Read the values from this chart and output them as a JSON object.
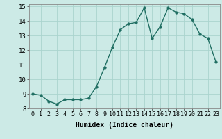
{
  "x": [
    0,
    1,
    2,
    3,
    4,
    5,
    6,
    7,
    8,
    9,
    10,
    11,
    12,
    13,
    14,
    15,
    16,
    17,
    18,
    19,
    20,
    21,
    22,
    23
  ],
  "y": [
    9.0,
    8.9,
    8.5,
    8.3,
    8.6,
    8.6,
    8.6,
    8.7,
    9.5,
    10.8,
    12.2,
    13.4,
    13.8,
    13.9,
    14.9,
    12.8,
    13.6,
    14.9,
    14.6,
    14.5,
    14.1,
    13.1,
    12.8,
    11.2
  ],
  "xlabel": "Humidex (Indice chaleur)",
  "ylim": [
    8,
    15
  ],
  "xlim_min": -0.5,
  "xlim_max": 23.5,
  "yticks": [
    8,
    9,
    10,
    11,
    12,
    13,
    14,
    15
  ],
  "xticks": [
    0,
    1,
    2,
    3,
    4,
    5,
    6,
    7,
    8,
    9,
    10,
    11,
    12,
    13,
    14,
    15,
    16,
    17,
    18,
    19,
    20,
    21,
    22,
    23
  ],
  "xtick_labels": [
    "0",
    "1",
    "2",
    "3",
    "4",
    "5",
    "6",
    "7",
    "8",
    "9",
    "10",
    "11",
    "12",
    "13",
    "14",
    "15",
    "16",
    "17",
    "18",
    "19",
    "20",
    "21",
    "22",
    "23"
  ],
  "line_color": "#1f6e62",
  "marker_color": "#1f6e62",
  "bg_color": "#cceae6",
  "grid_color": "#aad4ce",
  "axis_bg": "#cceae6",
  "tick_fontsize": 6.0,
  "xlabel_fontsize": 7.0,
  "ytick_fontsize": 6.5
}
